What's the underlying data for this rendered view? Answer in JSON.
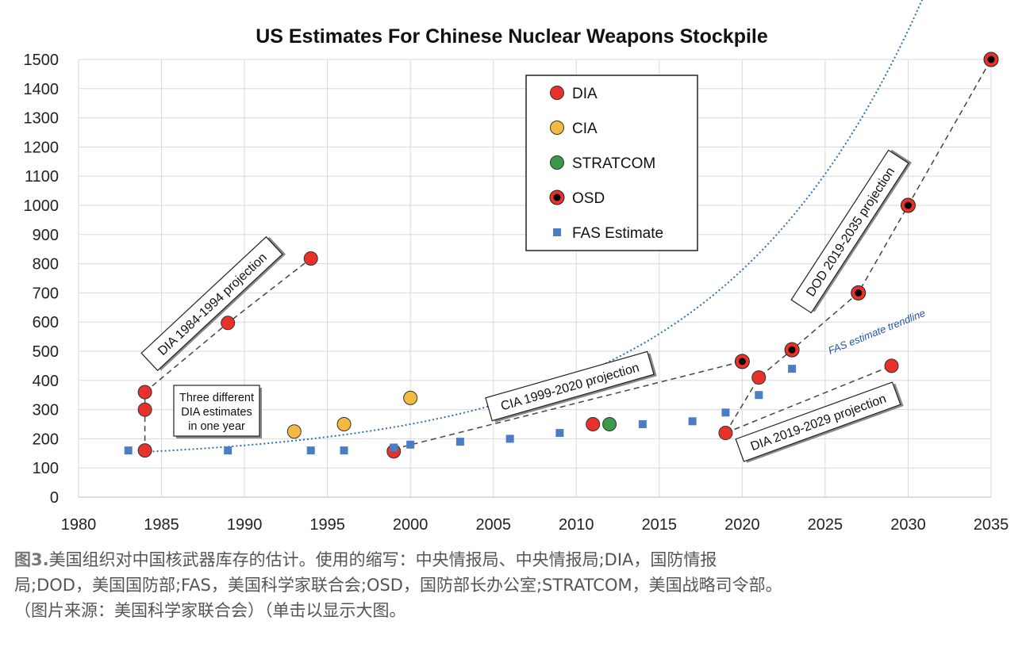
{
  "chart_data": {
    "type": "scatter",
    "title": "US Estimates For Chinese Nuclear Weapons Stockpile",
    "xlabel": "",
    "ylabel": "",
    "xlim": [
      1980,
      2035
    ],
    "ylim": [
      0,
      1500
    ],
    "x_ticks": [
      "1980",
      "1985",
      "1990",
      "1995",
      "2000",
      "2005",
      "2010",
      "2015",
      "2020",
      "2025",
      "2030",
      "2035"
    ],
    "y_ticks": [
      "0",
      "100",
      "200",
      "300",
      "400",
      "500",
      "600",
      "700",
      "800",
      "900",
      "1000",
      "1100",
      "1200",
      "1300",
      "1400",
      "1500"
    ],
    "legend_position": "top-center",
    "series": [
      {
        "name": "DIA",
        "color": "#e8312a",
        "points": [
          [
            1984,
            160
          ],
          [
            1984,
            300
          ],
          [
            1984,
            360
          ],
          [
            1989,
            597
          ],
          [
            1994,
            818
          ],
          [
            1999,
            157
          ],
          [
            2011,
            250
          ],
          [
            2019,
            220
          ],
          [
            2021,
            410
          ],
          [
            2029,
            450
          ]
        ]
      },
      {
        "name": "CIA",
        "color": "#f4b942",
        "points": [
          [
            1993,
            225
          ],
          [
            1996,
            250
          ],
          [
            2000,
            340
          ]
        ]
      },
      {
        "name": "STRATCOM",
        "color": "#3a9a48",
        "points": [
          [
            2012,
            250
          ]
        ]
      },
      {
        "name": "OSD",
        "color": "#e8312a",
        "points": [
          [
            2020,
            465
          ],
          [
            2023,
            505
          ],
          [
            2027,
            700
          ],
          [
            2030,
            1000
          ],
          [
            2035,
            1500
          ]
        ]
      },
      {
        "name": "FAS Estimate",
        "color": "#4a7ec4",
        "points": [
          [
            1983,
            160
          ],
          [
            1989,
            160
          ],
          [
            1994,
            160
          ],
          [
            1996,
            160
          ],
          [
            1999,
            170
          ],
          [
            2000,
            180
          ],
          [
            2003,
            190
          ],
          [
            2006,
            200
          ],
          [
            2009,
            220
          ],
          [
            2014,
            250
          ],
          [
            2017,
            260
          ],
          [
            2019,
            290
          ],
          [
            2021,
            350
          ],
          [
            2023,
            440
          ]
        ]
      }
    ],
    "trendline": {
      "label": "FAS estimate trendline",
      "x_range": [
        1984,
        2035
      ]
    },
    "projection_lines": [
      {
        "name": "dia-1984-1994",
        "points": [
          [
            1984,
            360
          ],
          [
            1989,
            597
          ],
          [
            1994,
            818
          ]
        ]
      },
      {
        "name": "dia-1984-vertical",
        "points": [
          [
            1984,
            160
          ],
          [
            1984,
            360
          ]
        ]
      },
      {
        "name": "cia-1999-2020",
        "points": [
          [
            1999,
            165
          ],
          [
            2020,
            465
          ]
        ]
      },
      {
        "name": "dod-2019-2035",
        "points": [
          [
            2019,
            220
          ],
          [
            2021,
            410
          ],
          [
            2023,
            505
          ],
          [
            2027,
            700
          ],
          [
            2030,
            1000
          ],
          [
            2035,
            1500
          ]
        ]
      },
      {
        "name": "dia-2019-2029",
        "points": [
          [
            2019,
            220
          ],
          [
            2029,
            450
          ]
        ]
      }
    ],
    "annotations": [
      {
        "name": "dia-1984-1994-label",
        "text": "DIA 1984-1994 projection"
      },
      {
        "name": "three-estimates-label",
        "lines": [
          "Three different",
          "DIA estimates",
          "in one year"
        ]
      },
      {
        "name": "cia-1999-2020-label",
        "text": "CIA 1999-2020 projection"
      },
      {
        "name": "dod-2019-2035-label",
        "text": "DOD 2019-2035 projection"
      },
      {
        "name": "dia-2019-2029-label",
        "text": "DIA 2019-2029 projection"
      }
    ]
  },
  "caption": {
    "figure_label": "图3.",
    "line1": "美国组织对中国核武器库存的估计。使用的缩写：中央情报局、中央情报局;DIA，国防情报",
    "line2": "局;DOD，美国国防部;FAS，美国科学家联合会;OSD，国防部长办公室;STRATCOM，美国战略司令部。",
    "line3": "（图片来源：美国科学家联合会）（单击以显示大图。"
  }
}
